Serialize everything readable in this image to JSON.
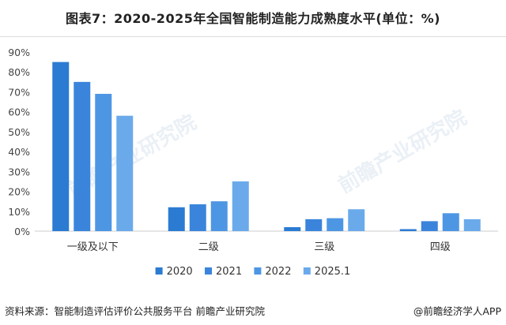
{
  "chart_data": {
    "type": "bar",
    "title": "图表7：2020-2025年全国智能制造能力成熟度水平(单位：%)",
    "categories": [
      "一级及以下",
      "二级",
      "三级",
      "四级"
    ],
    "series": [
      {
        "name": "2020",
        "values": [
          85,
          12,
          2,
          1
        ],
        "color": "#2b7bd3"
      },
      {
        "name": "2021",
        "values": [
          75,
          13.5,
          6,
          5
        ],
        "color": "#3a85db"
      },
      {
        "name": "2022",
        "values": [
          69,
          15,
          6.5,
          9
        ],
        "color": "#4d96e4"
      },
      {
        "name": "2025.1",
        "values": [
          58,
          25,
          11,
          6
        ],
        "color": "#6aaaeb"
      }
    ],
    "ylim": [
      0,
      90
    ],
    "yticks": [
      "0%",
      "10%",
      "20%",
      "30%",
      "40%",
      "50%",
      "60%",
      "70%",
      "80%",
      "90%"
    ],
    "legend_position": "bottom",
    "grid": false
  },
  "footer": {
    "source": "资料来源：智能制造评估评价公共服务平台 前瞻产业研究院",
    "credit": "@前瞻经济学人APP"
  },
  "watermark": {
    "text": "前瞻产业研究院"
  }
}
